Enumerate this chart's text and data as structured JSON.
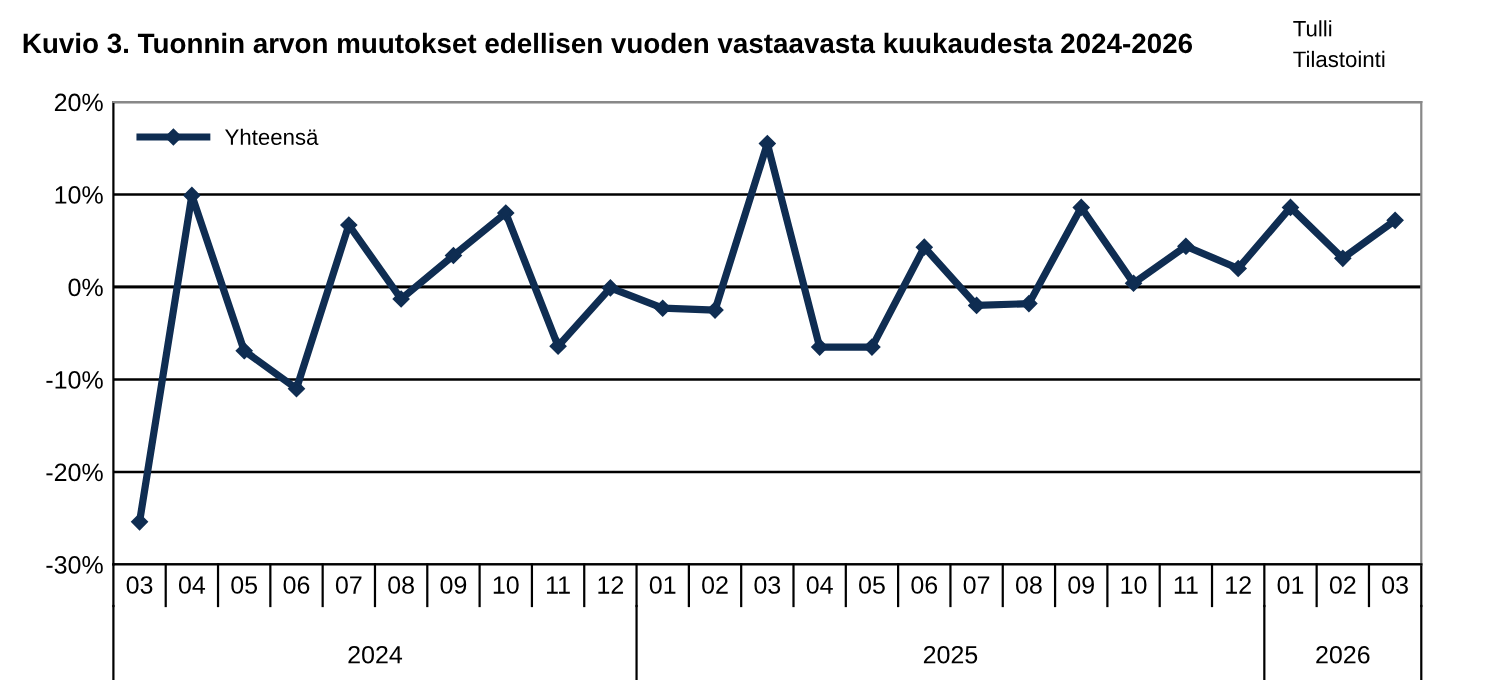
{
  "chart_data": {
    "type": "line",
    "title": "Kuvio 3. Tuonnin arvon muutokset edellisen vuoden vastaavasta kuukaudesta 2024-2026",
    "categories": [
      "03",
      "04",
      "05",
      "06",
      "07",
      "08",
      "09",
      "10",
      "11",
      "12",
      "01",
      "02",
      "03",
      "04",
      "05",
      "06",
      "07",
      "08",
      "09",
      "10",
      "11",
      "12",
      "01",
      "02",
      "03"
    ],
    "series": [
      {
        "name": "Yhteensä",
        "color": "#0f2d52",
        "values": [
          -25.4,
          9.9,
          -6.9,
          -11.0,
          6.7,
          -1.3,
          3.4,
          8.0,
          -6.4,
          -0.1,
          -2.3,
          -2.5,
          15.5,
          -6.5,
          -6.5,
          4.3,
          -2.0,
          -1.8,
          8.6,
          0.4,
          4.4,
          2.0,
          8.6,
          3.1,
          7.2
        ]
      }
    ],
    "ylim": [
      -30,
      20
    ],
    "yticks": [
      {
        "value": -30,
        "label": "-30%"
      },
      {
        "value": -20,
        "label": "-20%"
      },
      {
        "value": -10,
        "label": "-10%"
      },
      {
        "value": 0,
        "label": "0%"
      },
      {
        "value": 10,
        "label": "10%"
      },
      {
        "value": 20,
        "label": "20%"
      }
    ],
    "grid": "y",
    "legend": "top left",
    "marker": "diamond",
    "line_style": "solid",
    "annotations": [
      "Tulli",
      "Tilastointi",
      "2024",
      "2025",
      "2026"
    ]
  }
}
